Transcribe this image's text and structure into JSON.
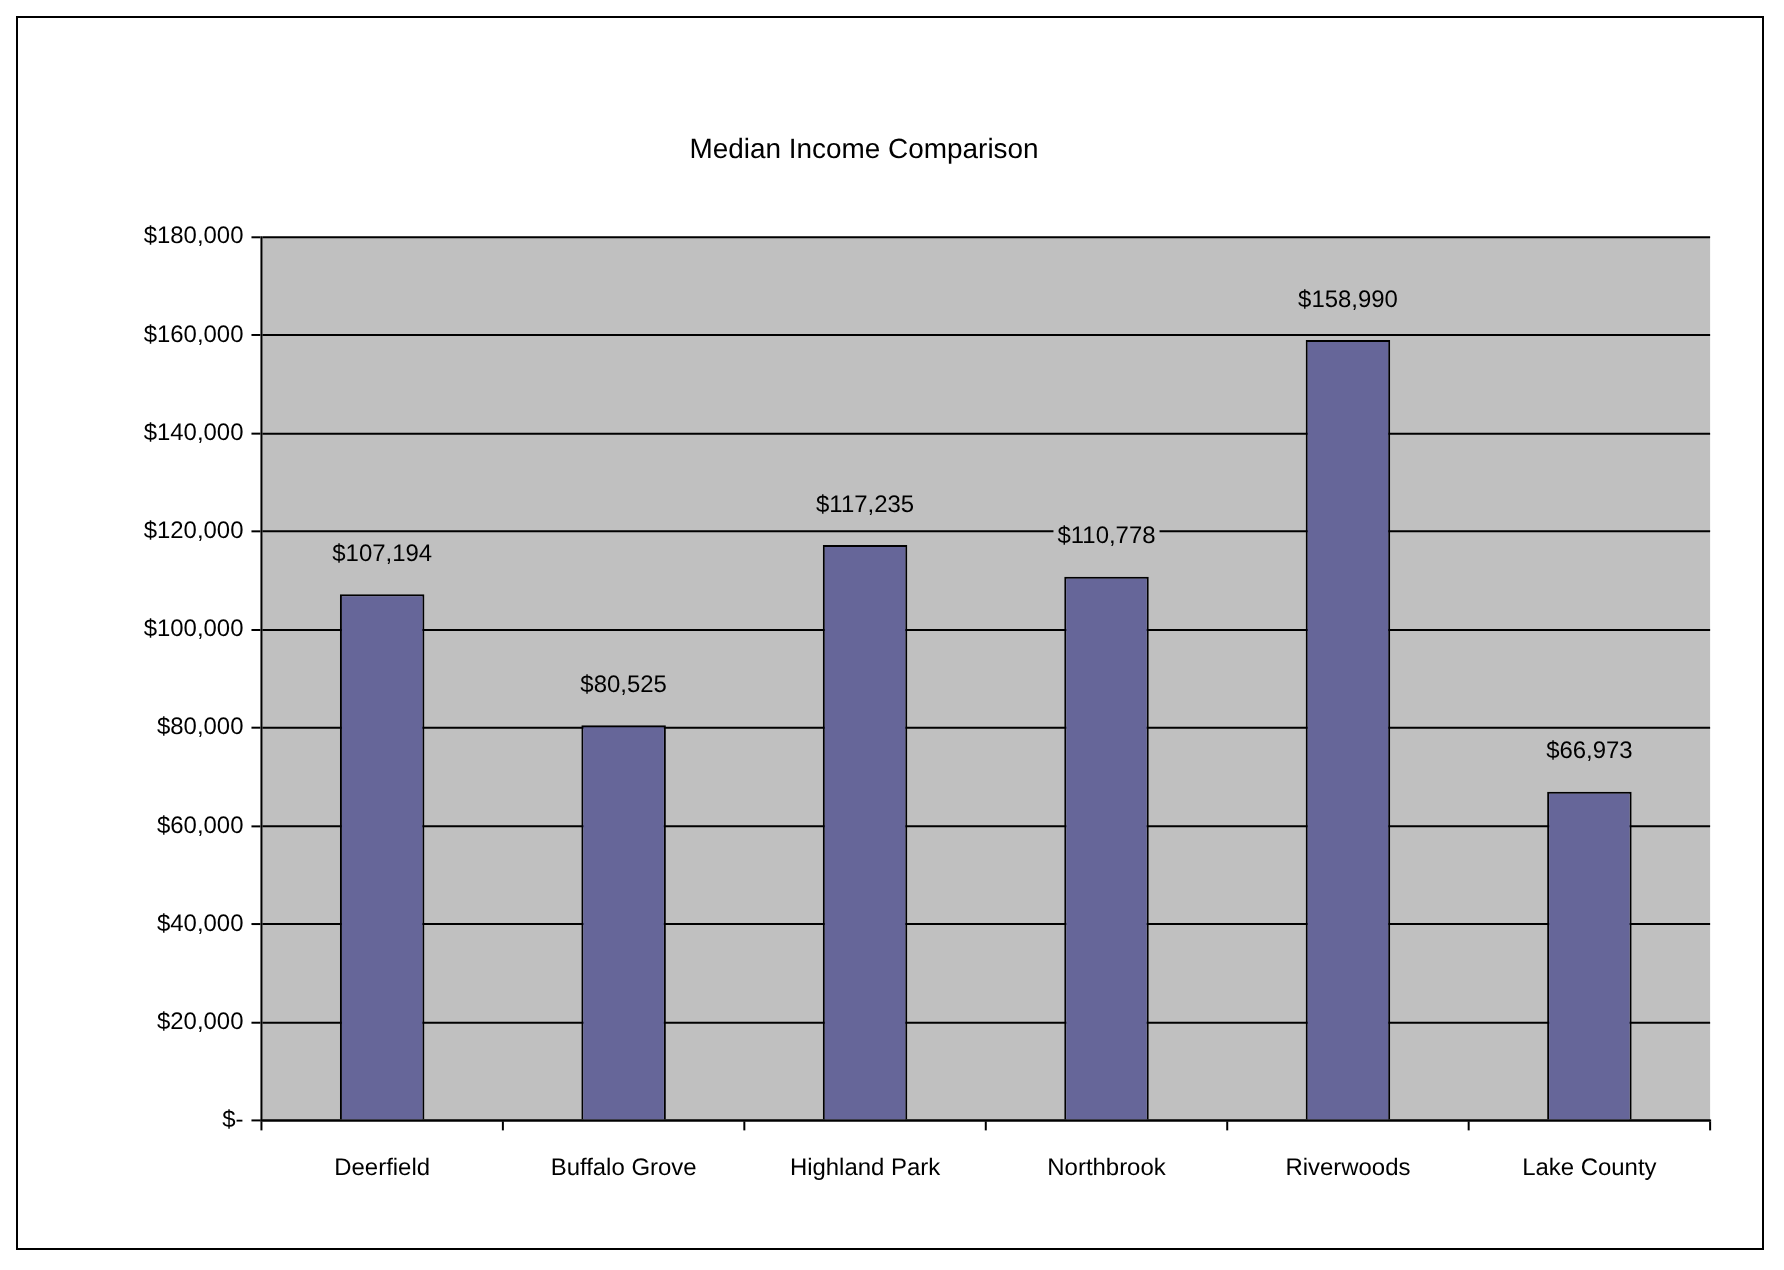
{
  "chart_data": {
    "type": "bar",
    "title": "Median Income Comparison",
    "categories": [
      "Deerfield",
      "Buffalo Grove",
      "Highland Park",
      "Northbrook",
      "Riverwoods",
      "Lake County"
    ],
    "series": [
      {
        "color": "#666699",
        "values": [
          107194,
          80525,
          117235,
          110778,
          158990,
          66973
        ],
        "value_labels": [
          "$107,194",
          "$80,525",
          "$117,235",
          "$110,778",
          "$158,990",
          "$66,973"
        ]
      }
    ],
    "ylim": [
      0,
      180000
    ],
    "yticks": [
      {
        "value": 0,
        "label": "$-"
      },
      {
        "value": 20000,
        "label": "$20,000"
      },
      {
        "value": 40000,
        "label": "$40,000"
      },
      {
        "value": 60000,
        "label": "$60,000"
      },
      {
        "value": 80000,
        "label": "$80,000"
      },
      {
        "value": 100000,
        "label": "$100,000"
      },
      {
        "value": 120000,
        "label": "$120,000"
      },
      {
        "value": 140000,
        "label": "$140,000"
      },
      {
        "value": 160000,
        "label": "$160,000"
      },
      {
        "value": 180000,
        "label": "$180,000"
      }
    ],
    "grid": "y",
    "legend": false
  }
}
